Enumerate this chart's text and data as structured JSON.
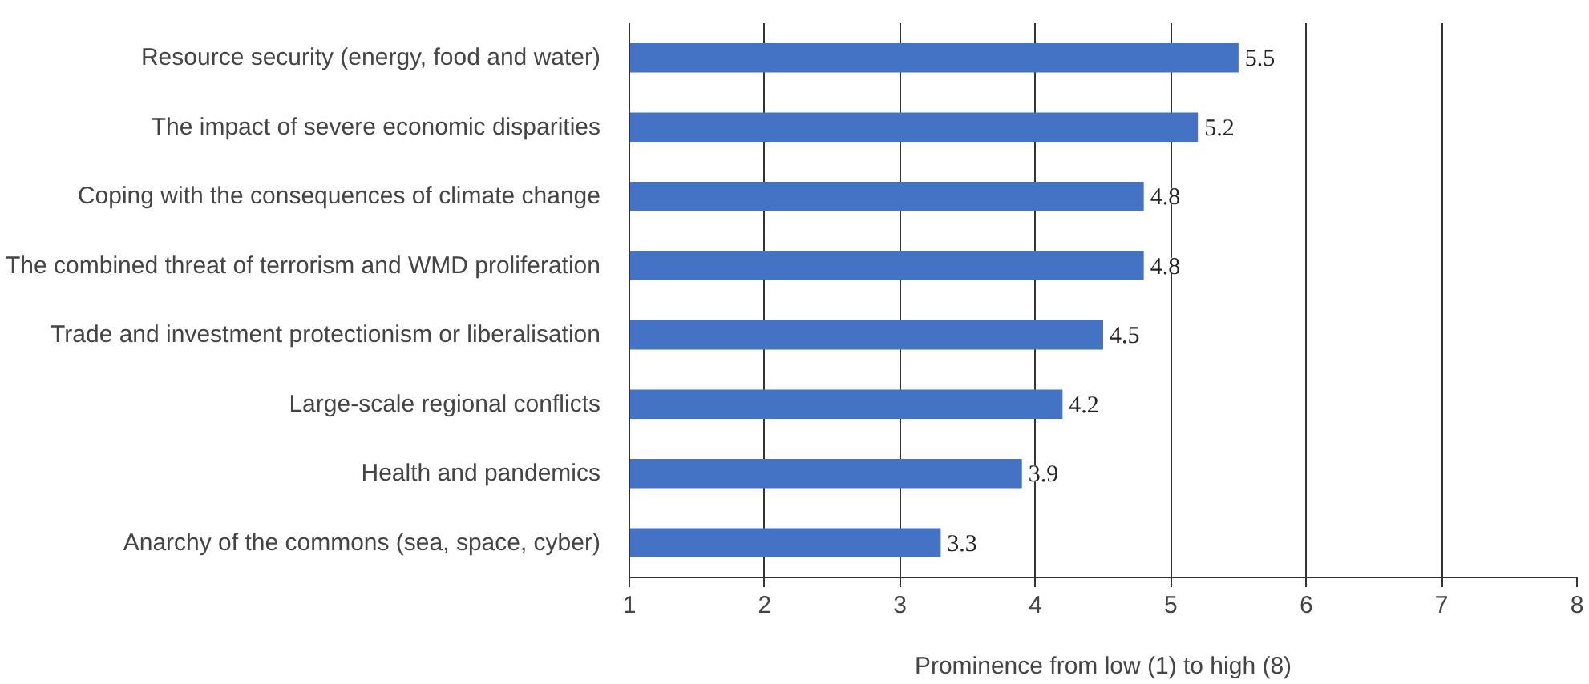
{
  "chart_data": {
    "type": "bar",
    "orientation": "horizontal",
    "xlabel": "Prominence from low (1) to high (8)",
    "categories": [
      "Resource security (energy, food and water)",
      "The impact of severe economic disparities",
      "Coping with the consequences of climate change",
      "The combined threat of terrorism and WMD proliferation",
      "Trade and investment protectionism or liberalisation",
      "Large-scale regional conflicts",
      "Health and pandemics",
      "Anarchy of the commons (sea, space, cyber)"
    ],
    "values": [
      5.5,
      5.2,
      4.8,
      4.8,
      4.5,
      4.2,
      3.9,
      3.3
    ],
    "color": "#4472c4",
    "xlim": [
      1,
      8
    ],
    "xticks": [
      1,
      2,
      3,
      4,
      5,
      6,
      7,
      8
    ],
    "grid": "x",
    "data_labels": true
  }
}
